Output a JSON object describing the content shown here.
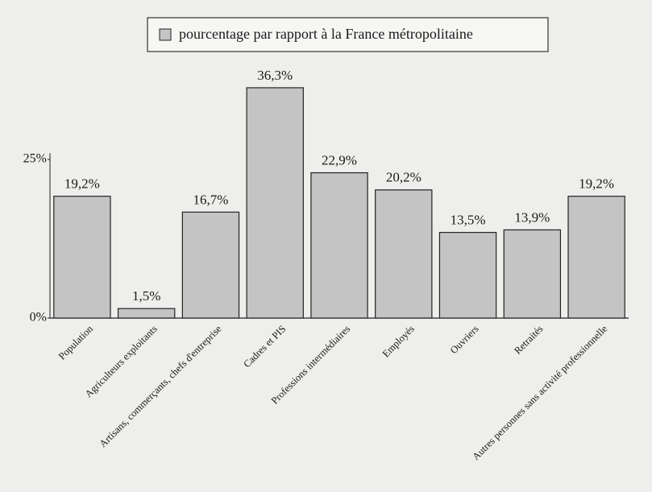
{
  "chart_data": {
    "type": "bar",
    "categories": [
      "Population",
      "Agriculteurs exploitants",
      "Artisans, commerçants, chefs d'entreprise",
      "Cadres et PIS",
      "Professions intermédiaires",
      "Employés",
      "Ouvriers",
      "Retraités",
      "Autres personnes sans activité professionnelle"
    ],
    "series": [
      {
        "name": "pourcentage par rapport à la France métropolitaine",
        "color": "#c4c4c4",
        "values": [
          19.2,
          1.5,
          16.7,
          36.3,
          22.9,
          20.2,
          13.5,
          13.9,
          19.2
        ],
        "value_labels": [
          "19,2%",
          "1,5%",
          "16,7%",
          "36,3%",
          "22,9%",
          "20,2%",
          "13,5%",
          "13,9%",
          "19,2%"
        ]
      }
    ],
    "ylim": [
      0,
      45
    ],
    "yticks": [
      {
        "value": 0,
        "label": "0%"
      },
      {
        "value": 25,
        "label": "25%"
      }
    ],
    "legend": "top"
  }
}
